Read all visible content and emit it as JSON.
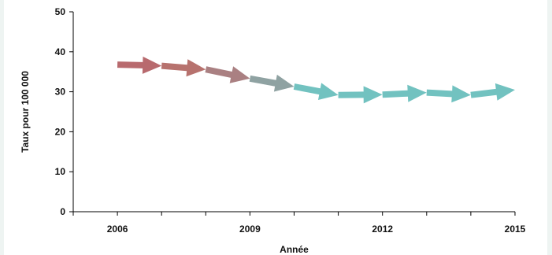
{
  "chart_data": {
    "type": "line",
    "title": "",
    "xlabel": "Année",
    "ylabel": "Taux pour 100 000",
    "xlim": [
      2005,
      2015
    ],
    "ylim": [
      0,
      50
    ],
    "y_ticks": [
      0,
      10,
      20,
      30,
      40,
      50
    ],
    "x_tick_labels": [
      "2006",
      "2009",
      "2012",
      "2015"
    ],
    "x_tick_label_values": [
      2006,
      2009,
      2012,
      2015
    ],
    "x_minor_ticks": [
      2005,
      2006,
      2007,
      2008,
      2009,
      2010,
      2011,
      2012,
      2013,
      2014,
      2015
    ],
    "grid": false,
    "series": [
      {
        "x": [
          2006,
          2007,
          2008,
          2009,
          2010,
          2011,
          2012,
          2013,
          2014,
          2015
        ],
        "values": [
          36.8,
          36.5,
          35.6,
          33.3,
          31.3,
          29.2,
          29.3,
          29.8,
          29.2,
          30.5
        ],
        "segment_colors": [
          "#b86a6e",
          "#b7726e",
          "#aa8082",
          "#8fa2a2",
          "#72c2c0",
          "#72c2c0",
          "#72c2c0",
          "#72c2c0",
          "#72c2c0"
        ]
      }
    ]
  }
}
